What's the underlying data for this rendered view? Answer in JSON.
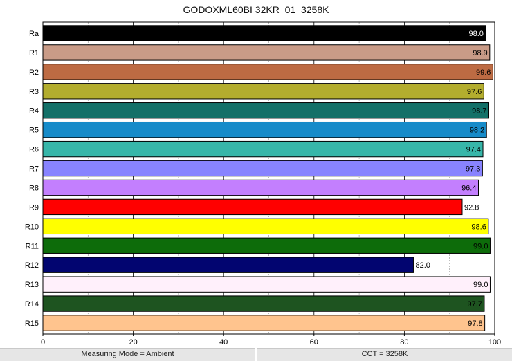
{
  "chart_data": {
    "type": "bar",
    "orientation": "horizontal",
    "title": "GODOXML60BI 32KR_01_3258K",
    "categories": [
      "Ra",
      "R1",
      "R2",
      "R3",
      "R4",
      "R5",
      "R6",
      "R7",
      "R8",
      "R9",
      "R10",
      "R11",
      "R12",
      "R13",
      "R14",
      "R15"
    ],
    "values": [
      98.0,
      98.9,
      99.6,
      97.6,
      98.7,
      98.2,
      97.4,
      97.3,
      96.4,
      92.8,
      98.6,
      99.0,
      82.0,
      99.0,
      97.7,
      97.8
    ],
    "value_labels": [
      "98.0",
      "98.9",
      "99.6",
      "97.6",
      "98.7",
      "98.2",
      "97.4",
      "97.3",
      "96.4",
      "92.8",
      "98.6",
      "99.0",
      "82.0",
      "99.0",
      "97.7",
      "97.8"
    ],
    "colors": [
      "#000000",
      "#c99b87",
      "#bd6b43",
      "#b3ad2e",
      "#137068",
      "#168bc9",
      "#37b6a9",
      "#8883ff",
      "#c37ffe",
      "#ff0000",
      "#ffff00",
      "#0d6c0a",
      "#020570",
      "#fff0fb",
      "#1e5420",
      "#ffc48e"
    ],
    "xlim": [
      0,
      100
    ],
    "xticks": [
      0,
      20,
      40,
      60,
      80,
      100
    ],
    "xtick_labels": [
      "0",
      "20",
      "40",
      "60",
      "80",
      "100"
    ],
    "minor_gridlines": [
      10,
      30,
      50,
      70,
      90
    ],
    "grid": true,
    "legend": "none"
  },
  "footer": {
    "measuring_mode": "Measuring Mode = Ambient",
    "cct": "CCT = 3258K"
  }
}
